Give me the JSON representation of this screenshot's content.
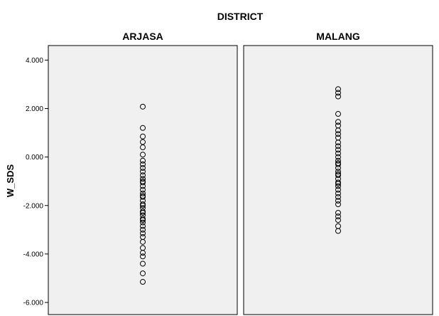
{
  "chart_data": {
    "type": "scatter",
    "title": "",
    "panel_title": "DISTRICT",
    "ylabel": "W_SDS",
    "xlabel": "",
    "ylim": [
      -6.5,
      4.6
    ],
    "yticks": [
      4,
      2,
      0,
      -2,
      -4,
      -6
    ],
    "ytick_labels": [
      "4.000",
      "2.000",
      "0.000",
      "-2.000",
      "-4.000",
      "-6.000"
    ],
    "colors": {
      "panel_bg": "#f0f0f0",
      "marker": "#000000",
      "frame": "#000000"
    },
    "grid": false,
    "panels": [
      {
        "name": "ARJASA",
        "values": [
          2.08,
          1.2,
          0.85,
          0.62,
          0.4,
          0.1,
          -0.15,
          -0.3,
          -0.45,
          -0.6,
          -0.75,
          -0.9,
          -1.05,
          -1.2,
          -1.35,
          -1.5,
          -1.65,
          -1.8,
          -1.95,
          -2.1,
          -2.25,
          -2.4,
          -2.55,
          -2.7,
          -2.85,
          -3.0,
          -3.15,
          -3.3,
          -3.5,
          -3.75,
          -3.95,
          -4.1,
          -4.4,
          -4.8,
          -5.15,
          -1.0,
          -1.6,
          -2.0,
          -2.3,
          -2.6
        ]
      },
      {
        "name": "MALANG",
        "values": [
          2.8,
          2.65,
          2.5,
          1.78,
          1.45,
          1.3,
          1.1,
          0.95,
          0.8,
          0.6,
          0.45,
          0.3,
          0.15,
          0.0,
          -0.15,
          -0.3,
          -0.45,
          -0.6,
          -0.75,
          -0.9,
          -1.05,
          -1.2,
          -1.35,
          -1.5,
          -1.65,
          -1.8,
          -1.95,
          -2.3,
          -2.45,
          -2.6,
          -2.85,
          -3.05,
          -0.25,
          -0.7,
          -1.1
        ]
      }
    ]
  }
}
